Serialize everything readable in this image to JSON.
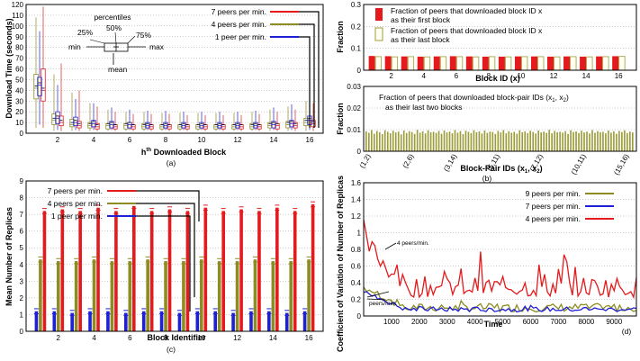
{
  "colors": {
    "red": "#e41a1c",
    "olive": "#8c8c23",
    "blue": "#1f1fd6",
    "barred": "#e41a1c",
    "barolive": "#9c9c3a"
  },
  "chart_data": [
    {
      "id": "a",
      "type": "box",
      "caption": "(a)",
      "ylabel": "Download Time (seconds)",
      "xlabel": "h",
      "xlabel_sup": "th",
      "xlabel_rest": " Downloaded Block",
      "ylim": [
        0,
        120
      ],
      "yticks": [
        0,
        10,
        20,
        30,
        40,
        50,
        60,
        70,
        80,
        90,
        100,
        110,
        120
      ],
      "xticks": [
        2,
        4,
        6,
        8,
        10,
        12,
        14,
        16
      ],
      "legend_inset": {
        "title": "percentiles",
        "p25": "25%",
        "p50": "50%",
        "p75": "75%",
        "min": "min",
        "max": "max",
        "mean": "mean"
      },
      "series": [
        {
          "name": "7 peers per min.",
          "color": "red",
          "median": [
            40,
            10,
            7,
            6,
            6,
            6,
            6,
            6,
            6,
            6,
            6,
            6,
            6,
            7,
            7,
            9
          ],
          "q1": [
            30,
            7,
            5,
            4,
            4,
            4,
            4,
            4,
            4,
            4,
            4,
            4,
            4,
            4,
            5,
            6
          ],
          "q3": [
            60,
            16,
            11,
            9,
            8,
            8,
            8,
            8,
            8,
            8,
            8,
            8,
            8,
            9,
            10,
            12
          ],
          "min": [
            5,
            2,
            2,
            2,
            2,
            2,
            2,
            2,
            2,
            2,
            2,
            2,
            2,
            2,
            2,
            2
          ],
          "max": [
            118,
            65,
            40,
            25,
            20,
            18,
            18,
            18,
            17,
            17,
            17,
            17,
            18,
            20,
            22,
            28
          ]
        },
        {
          "name": "4 peers per min.",
          "color": "olive",
          "median": [
            42,
            12,
            8,
            7,
            7,
            7,
            6,
            6,
            6,
            6,
            6,
            6,
            6,
            7,
            8,
            10
          ],
          "q1": [
            32,
            8,
            6,
            5,
            4,
            4,
            4,
            4,
            4,
            4,
            4,
            4,
            4,
            5,
            5,
            7
          ],
          "q3": [
            55,
            18,
            13,
            10,
            9,
            9,
            9,
            8,
            8,
            8,
            8,
            8,
            9,
            10,
            11,
            14
          ],
          "min": [
            5,
            2,
            2,
            2,
            2,
            2,
            2,
            2,
            2,
            2,
            2,
            2,
            2,
            2,
            2,
            2
          ],
          "max": [
            108,
            55,
            38,
            28,
            22,
            20,
            20,
            19,
            19,
            19,
            19,
            19,
            20,
            22,
            25,
            30
          ]
        },
        {
          "name": "1 peer per min.",
          "color": "blue",
          "median": [
            45,
            14,
            10,
            9,
            8,
            8,
            7,
            7,
            7,
            7,
            7,
            7,
            7,
            8,
            9,
            12
          ],
          "q1": [
            35,
            9,
            7,
            6,
            5,
            5,
            5,
            5,
            5,
            5,
            5,
            5,
            5,
            5,
            6,
            8
          ],
          "q3": [
            52,
            20,
            15,
            12,
            11,
            10,
            10,
            10,
            10,
            10,
            10,
            10,
            10,
            11,
            12,
            16
          ],
          "min": [
            8,
            3,
            3,
            3,
            3,
            3,
            3,
            3,
            3,
            3,
            3,
            3,
            3,
            3,
            3,
            3
          ],
          "max": [
            95,
            45,
            32,
            28,
            24,
            22,
            21,
            21,
            20,
            20,
            20,
            20,
            21,
            24,
            27,
            35
          ]
        }
      ]
    },
    {
      "id": "b-top",
      "type": "bar",
      "ylabel": "Fraction",
      "xlabel": "Block ID (x)",
      "ylim": [
        0,
        0.3
      ],
      "yticks": [
        "0",
        "0.1",
        "0.2",
        "0.3"
      ],
      "xticks": [
        2,
        4,
        6,
        8,
        10,
        12,
        14,
        16
      ],
      "series": [
        {
          "name": "Fraction of peers that downloaded block  ID x",
          "name2": "as their first block",
          "color": "barred",
          "values": [
            0.065,
            0.064,
            0.063,
            0.062,
            0.063,
            0.064,
            0.063,
            0.062,
            0.062,
            0.063,
            0.063,
            0.062,
            0.063,
            0.062,
            0.063,
            0.064
          ]
        },
        {
          "name": "Fraction of peers that downloaded block  ID x",
          "name2": "as their last block",
          "color": "barolive",
          "values": [
            0.062,
            0.061,
            0.062,
            0.061,
            0.062,
            0.062,
            0.061,
            0.062,
            0.061,
            0.062,
            0.062,
            0.061,
            0.062,
            0.061,
            0.062,
            0.063
          ]
        }
      ]
    },
    {
      "id": "b-bottom",
      "type": "bar",
      "caption": "(b)",
      "ylabel": "Fraction",
      "xlabel": "Block-Pair IDs (x",
      "ylim": [
        0,
        0.03
      ],
      "yticks": [
        "0",
        "0.01",
        "0.02",
        "0.03"
      ],
      "xticks": [
        "(1,2)",
        "(2,6)",
        "(3,14)",
        "(5,11)",
        "(7,12)",
        "(10,11)",
        "(15,16)"
      ],
      "series": [
        {
          "name": "Fraction of peers that downloaded block-pair IDs (x",
          "name2": "as their last two blocks",
          "color": "barolive",
          "values": [
            0.0092,
            0.0085,
            0.0098,
            0.0081,
            0.0094,
            0.0088,
            0.0079,
            0.0097,
            0.009,
            0.0083,
            0.0095,
            0.0087,
            0.0091,
            0.0078,
            0.0096,
            0.0084,
            0.0093,
            0.0089,
            0.008,
            0.0099,
            0.0086,
            0.0092,
            0.0082,
            0.0097,
            0.0088,
            0.009,
            0.0085,
            0.0094,
            0.0081,
            0.0096,
            0.0087,
            0.0091,
            0.0083,
            0.0098,
            0.0086,
            0.0093,
            0.0079,
            0.0095,
            0.009,
            0.0084,
            0.0097,
            0.0088,
            0.0092,
            0.0082,
            0.0096,
            0.0085,
            0.0091,
            0.0089,
            0.008,
            0.0094,
            0.0087,
            0.0098,
            0.0083,
            0.0093,
            0.0086,
            0.009,
            0.0081,
            0.0097,
            0.0088,
            0.0092,
            0.0084,
            0.0095,
            0.0089,
            0.0082,
            0.0096,
            0.0087,
            0.0091,
            0.0085,
            0.0099,
            0.0083,
            0.0094,
            0.0088,
            0.009,
            0.0086,
            0.0093,
            0.008,
            0.0097,
            0.0089,
            0.0092,
            0.0084,
            0.0095,
            0.0087,
            0.0091,
            0.0082,
            0.0098,
            0.0085,
            0.0093,
            0.0088,
            0.009,
            0.0083,
            0.0096,
            0.0086,
            0.0092,
            0.0081,
            0.0094,
            0.0089,
            0.0097,
            0.0084,
            0.0091,
            0.0087
          ]
        }
      ]
    },
    {
      "id": "c",
      "type": "bar",
      "caption": "(c)",
      "ylabel": "Mean Number of Replicas",
      "xlabel": "Block Identifier",
      "ylim": [
        0,
        9
      ],
      "yticks": [
        0,
        1,
        2,
        3,
        4,
        5,
        6,
        7,
        8,
        9
      ],
      "xticks": [
        2,
        4,
        6,
        8,
        10,
        12,
        14,
        16
      ],
      "series": [
        {
          "name": "1 peer per min.",
          "color": "blue",
          "values": [
            1.2,
            1.2,
            1.1,
            1.2,
            1.2,
            1.1,
            1.2,
            1.2,
            1.1,
            1.2,
            1.2,
            1.1,
            1.2,
            1.2,
            1.1,
            1.2
          ]
        },
        {
          "name": "4 peers per min.",
          "color": "olive",
          "values": [
            4.3,
            4.2,
            4.2,
            4.3,
            4.2,
            4.2,
            4.3,
            4.2,
            4.2,
            4.3,
            4.2,
            4.2,
            4.3,
            4.2,
            4.2,
            4.3
          ]
        },
        {
          "name": "7 peers per min.",
          "color": "red",
          "values": [
            7.2,
            7.3,
            7.2,
            7.4,
            7.2,
            7.5,
            7.2,
            7.3,
            7.2,
            7.4,
            7.2,
            7.3,
            7.2,
            7.4,
            7.2,
            7.6
          ]
        }
      ]
    },
    {
      "id": "d",
      "type": "line",
      "caption": "(d)",
      "ylabel": "Coefficient of Variation of Number of Replicas",
      "xlabel": "Time",
      "xlim": [
        0,
        9800
      ],
      "ylim": [
        0,
        1.6
      ],
      "yticks": [
        "0",
        "0.2",
        "0.4",
        "0.6",
        "0.8",
        "1",
        "1.2",
        "1.4",
        "1.6"
      ],
      "xticks": [
        1000,
        2000,
        3000,
        4000,
        5000,
        6000,
        7000,
        8000,
        9000
      ],
      "annotations": {
        "a1": "4 peers/min.",
        "a2": "peers/min."
      },
      "series": [
        {
          "name": "9 peers per min.",
          "color": "olive"
        },
        {
          "name": "7 peers per min.",
          "color": "blue"
        },
        {
          "name": "4 peers per min.",
          "color": "red"
        }
      ]
    }
  ]
}
